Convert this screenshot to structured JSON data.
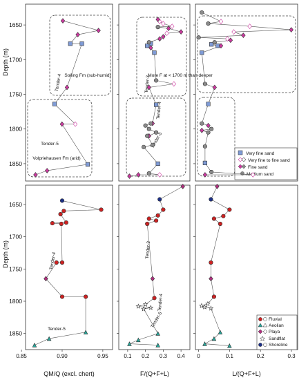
{
  "colors": {
    "very_fine_sand": "#7f9bd6",
    "fine_sand": "#cc3aa0",
    "medium_sand": "#8a8a8a",
    "fluvial": "#cc2222",
    "aeolian": "#2aa59a",
    "playa": "#b0307f",
    "shoreline": "#1c2f86",
    "line": "#555555"
  },
  "chart_data": [
    {
      "panel": "top-left",
      "type": "scatter",
      "ylabel": "Depth (m)",
      "ylim": [
        1620,
        1875
      ],
      "yticks": [
        1650,
        1700,
        1750,
        1800,
        1850
      ],
      "xlim": [
        0.86,
        0.965
      ],
      "y_inverted": true,
      "series": [
        {
          "name": "Very fine sand",
          "x": [
            0.914,
            0.928,
            0.895,
            0.935
          ],
          "y": [
            1677,
            1677,
            1764,
            1851
          ]
        },
        {
          "name": "Very fine to fine sand",
          "x": [
            0.92
          ],
          "y": [
            1793
          ]
        },
        {
          "name": "Fine sand",
          "x": [
            0.905,
            0.948,
            0.923,
            0.91,
            0.904,
            0.886,
            0.872
          ],
          "y": [
            1644,
            1658,
            1664,
            1740,
            1793,
            1860,
            1866
          ]
        }
      ],
      "annotations": [
        "Tender-4",
        "Tender-5",
        "Solling Fm (sub-humid)",
        "Volpriehausen Fm (arid)"
      ]
    },
    {
      "panel": "top-middle",
      "type": "scatter",
      "xlim": [
        0.05,
        0.45
      ],
      "y_inverted": true,
      "series": [
        {
          "name": "Very fine sand",
          "x": [
            0.23,
            0.21,
            0.25,
            0.26,
            0.27
          ],
          "y": [
            1677,
            1680,
            1690,
            1765,
            1850
          ]
        },
        {
          "name": "Very fine to fine sand",
          "x": [
            0.28,
            0.3,
            0.35,
            0.32,
            0.36,
            0.28
          ],
          "y": [
            1645,
            1648,
            1652,
            1662,
            1735,
            1866
          ]
        },
        {
          "name": "Fine sand",
          "x": [
            0.27,
            0.33,
            0.4,
            0.3,
            0.28,
            0.23,
            0.22,
            0.24,
            0.22,
            0.16,
            0.11
          ],
          "y": [
            1642,
            1655,
            1660,
            1667,
            1670,
            1683,
            1740,
            1792,
            1810,
            1866,
            1868
          ]
        },
        {
          "name": "Medium sand",
          "x": [
            0.27,
            0.22,
            0.26,
            0.23,
            0.2,
            0.22,
            0.26,
            0.21,
            0.24,
            0.19,
            0.22
          ],
          "y": [
            1653,
            1675,
            1730,
            1792,
            1795,
            1800,
            1805,
            1810,
            1823,
            1826,
            1864
          ]
        }
      ],
      "annotations": [
        "Tender-3",
        "Tender-4",
        "Tender-5",
        "More F at < 1700 m than deeper"
      ]
    },
    {
      "panel": "top-right",
      "type": "scatter",
      "xlim": [
        0.0,
        0.32
      ],
      "y_inverted": true,
      "series": [
        {
          "name": "Very fine sand",
          "x": [
            0.05,
            0.07,
            0.02,
            0.04,
            0.03
          ],
          "y": [
            1678,
            1680,
            1690,
            1764,
            1849
          ]
        },
        {
          "name": "Very fine to fine sand",
          "x": [
            0.08,
            0.17,
            0.12,
            0.1,
            0.18
          ],
          "y": [
            1645,
            1652,
            1660,
            1670,
            1866
          ]
        },
        {
          "name": "Fine sand",
          "x": [
            0.3,
            0.15,
            0.11,
            0.08,
            0.06,
            0.04,
            0.02,
            0.03
          ],
          "y": [
            1657,
            1665,
            1672,
            1680,
            1740,
            1795,
            1802,
            1866
          ]
        },
        {
          "name": "Medium sand",
          "x": [
            0.02,
            0.04,
            0.01,
            0.06,
            0.03,
            0.02,
            0.05,
            0.04,
            0.03,
            0.05
          ],
          "y": [
            1632,
            1648,
            1668,
            1675,
            1735,
            1792,
            1800,
            1805,
            1825,
            1862
          ]
        }
      ],
      "legend": [
        "Very fine sand",
        "Very fine to fine sand",
        "Fine sand",
        "Medium sand"
      ]
    },
    {
      "panel": "bottom-left",
      "type": "scatter",
      "ylabel": "Depth (m)",
      "xlabel": "QM/Q (excl. chert)",
      "xticklabels": [
        "0.85",
        "0.90",
        "0.95"
      ],
      "xlim": [
        0.855,
        0.962
      ],
      "y_inverted": true,
      "series": [
        {
          "name": "Fluvial",
          "x": [
            0.948,
            0.902,
            0.898,
            0.888,
            0.899,
            0.905,
            0.9,
            0.893,
            0.9,
            0.929
          ],
          "y": [
            1658,
            1660,
            1665,
            1679,
            1680,
            1678,
            1740,
            1740,
            1793,
            1793
          ]
        },
        {
          "name": "Aeolian",
          "x": [
            0.929,
            0.884,
            0.866
          ],
          "y": [
            1848,
            1858,
            1868
          ]
        },
        {
          "name": "Playa",
          "x": [
            0.88
          ],
          "y": [
            1765
          ]
        },
        {
          "name": "Shoreline",
          "x": [
            0.9
          ],
          "y": [
            1644
          ]
        }
      ],
      "annotations": [
        "Tender-4",
        "Tender-5"
      ]
    },
    {
      "panel": "bottom-middle",
      "type": "scatter",
      "xlabel": "F/(Q+F+L)",
      "xticklabels": [
        "0.1",
        "0.2",
        "0.3",
        "0.4"
      ],
      "xlim": [
        0.05,
        0.45
      ],
      "y_inverted": true,
      "series": [
        {
          "name": "Fluvial",
          "x": [
            0.3,
            0.27,
            0.22,
            0.26,
            0.21,
            0.25
          ],
          "y": [
            1658,
            1667,
            1672,
            1675,
            1680,
            1795
          ]
        },
        {
          "name": "Aeolian",
          "x": [
            0.27,
            0.16,
            0.11,
            0.27
          ],
          "y": [
            1850,
            1860,
            1866,
            1868
          ]
        },
        {
          "name": "Playa",
          "x": [
            0.41,
            0.24
          ],
          "y": [
            1622,
            1765
          ]
        },
        {
          "name": "Sandflat",
          "x": [
            0.2,
            0.16,
            0.23,
            0.19
          ],
          "y": [
            1805,
            1808,
            1810,
            1812
          ]
        },
        {
          "name": "Shoreline",
          "x": [
            0.28
          ],
          "y": [
            1642
          ]
        }
      ],
      "annotations": [
        "Tender-3",
        "Tender-4",
        "Tender-5"
      ]
    },
    {
      "panel": "bottom-right",
      "type": "scatter",
      "xlabel": "L/(Q+F+L)",
      "xticklabels": [
        "0",
        "0.1",
        "0.2",
        "0.3"
      ],
      "xlim": [
        -0.01,
        0.32
      ],
      "y_inverted": true,
      "series": [
        {
          "name": "Fluvial",
          "x": [
            0.1,
            0.08,
            0.05,
            0.07,
            0.04,
            0.05
          ],
          "y": [
            1658,
            1668,
            1672,
            1680,
            1740,
            1793
          ]
        },
        {
          "name": "Aeolian",
          "x": [
            0.07,
            0.05,
            0.02,
            0.1
          ],
          "y": [
            1848,
            1858,
            1866,
            1869
          ]
        },
        {
          "name": "Playa",
          "x": [
            0.06,
            0.04
          ],
          "y": [
            1622,
            1765
          ]
        },
        {
          "name": "Sandflat",
          "x": [
            0.03,
            0.01,
            0.02,
            0.04
          ],
          "y": [
            1804,
            1807,
            1809,
            1811
          ]
        },
        {
          "name": "Shoreline",
          "x": [
            0.04
          ],
          "y": [
            1642
          ]
        }
      ],
      "legend": [
        "Fluvial",
        "Aeolian",
        "Playa",
        "Sandflat",
        "Shoreline"
      ]
    }
  ]
}
